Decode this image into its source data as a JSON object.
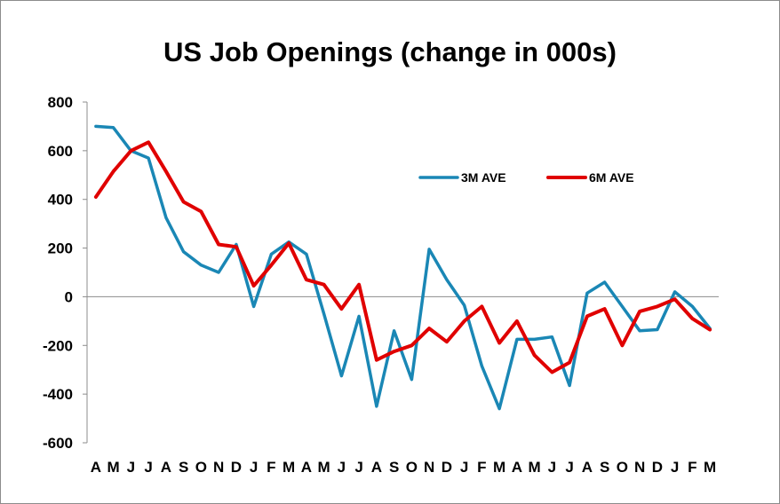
{
  "chart_data": {
    "type": "line",
    "title": "US Job Openings (change in 000s)",
    "xlabel": "",
    "ylabel": "",
    "ylim": [
      -600,
      800
    ],
    "yticks": [
      800,
      600,
      400,
      200,
      0,
      -200,
      -400,
      -600
    ],
    "categories": [
      "A",
      "M",
      "J",
      "J",
      "A",
      "S",
      "O",
      "N",
      "D",
      "J",
      "F",
      "M",
      "A",
      "M",
      "J",
      "J",
      "A",
      "S",
      "O",
      "N",
      "D",
      "J",
      "F",
      "M",
      "A",
      "M",
      "J",
      "J",
      "A",
      "S",
      "O",
      "N",
      "D",
      "J",
      "F",
      "M"
    ],
    "grid": false,
    "legend": "top-right, inside plot",
    "series": [
      {
        "name": "3M AVE",
        "color": "#1a87b5",
        "values": [
          700,
          695,
          600,
          570,
          325,
          185,
          130,
          100,
          215,
          -40,
          175,
          225,
          175,
          -70,
          -325,
          -80,
          -450,
          -140,
          -340,
          195,
          70,
          -35,
          -285,
          -460,
          -175,
          -175,
          -165,
          -365,
          15,
          60,
          -40,
          -140,
          -135,
          20,
          -40,
          -130
        ]
      },
      {
        "name": "6M AVE",
        "color": "#e00000",
        "values": [
          410,
          515,
          600,
          635,
          515,
          390,
          350,
          215,
          205,
          45,
          130,
          220,
          70,
          50,
          -50,
          50,
          -260,
          -225,
          -200,
          -130,
          -185,
          -100,
          -40,
          -190,
          -100,
          -240,
          -310,
          -270,
          -80,
          -50,
          -200,
          -60,
          -40,
          -10,
          -90,
          -135
        ]
      }
    ]
  }
}
